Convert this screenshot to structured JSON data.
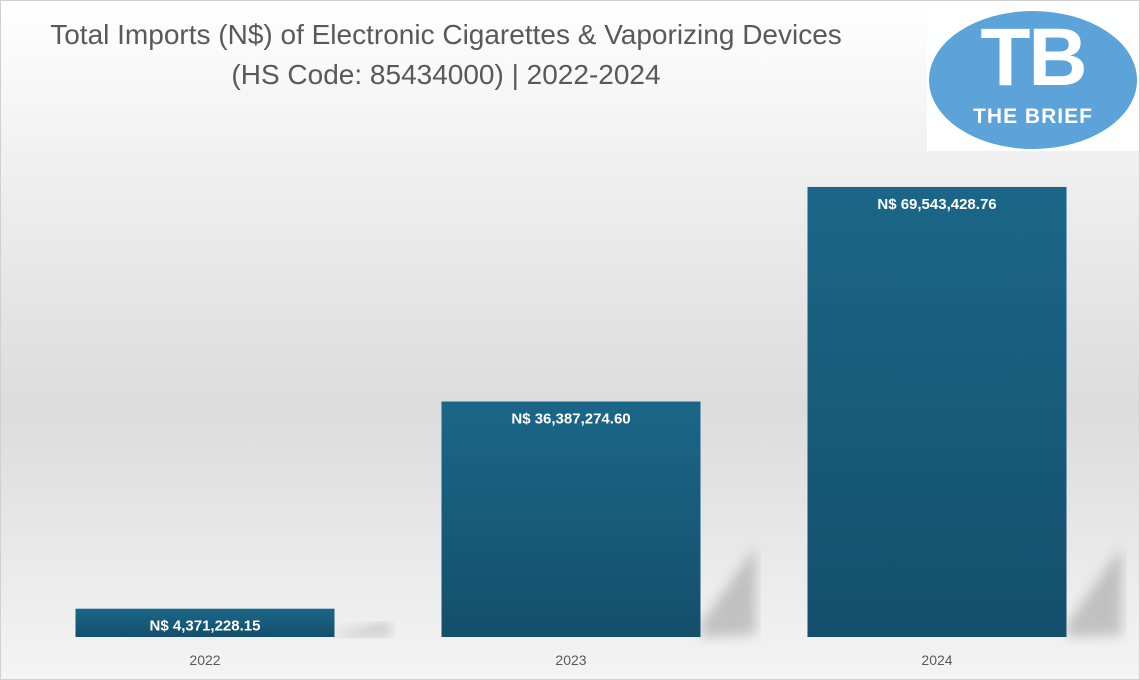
{
  "chart_data": {
    "type": "bar",
    "title_lines": [
      "Total Imports (N$) of Electronic Cigarettes & Vaporizing Devices",
      "(HS Code: 85434000) | 2022-2024"
    ],
    "categories": [
      "2022",
      "2023",
      "2024"
    ],
    "values": [
      4371228.15,
      36387274.6,
      69543428.76
    ],
    "data_labels": [
      "N$ 4,371,228.15",
      "N$ 36,387,274.60",
      "N$ 69,543,428.76"
    ],
    "ylim": [
      0,
      70000000
    ],
    "xlabel": "",
    "ylabel": "",
    "grid": false,
    "bar_color": "#1a5e80"
  },
  "logo": {
    "initials": "TB",
    "name": "THE BRIEF"
  }
}
